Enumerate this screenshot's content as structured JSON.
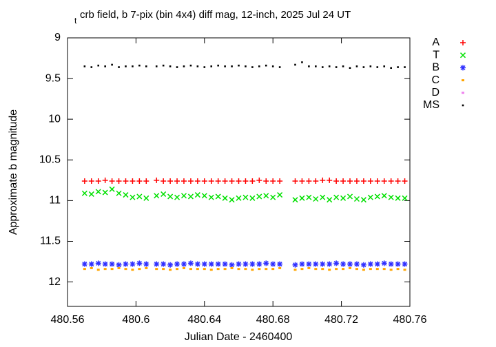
{
  "chart_data": {
    "type": "scatter",
    "title_subscript": "t",
    "title": "crb field, b 7-pix (bin 4x4) diff mag, 12-inch, 2025 Jul 24 UT",
    "x_label": "Julian Date - 2460400",
    "y_label": "Approximate b magnitude",
    "xlim": [
      480.56,
      480.76
    ],
    "xticks": [
      480.56,
      480.6,
      480.64,
      480.68,
      480.72,
      480.76
    ],
    "ylim": [
      12.3,
      9
    ],
    "yticks": [
      9,
      9.5,
      10,
      10.5,
      11,
      11.5,
      12
    ],
    "legend": "outside-right",
    "x": [
      480.57,
      480.574,
      480.578,
      480.582,
      480.586,
      480.59,
      480.594,
      480.598,
      480.602,
      480.606,
      480.612,
      480.616,
      480.62,
      480.624,
      480.628,
      480.632,
      480.636,
      480.64,
      480.644,
      480.648,
      480.652,
      480.656,
      480.66,
      480.664,
      480.668,
      480.672,
      480.676,
      480.68,
      480.684,
      480.693,
      480.697,
      480.701,
      480.705,
      480.709,
      480.713,
      480.717,
      480.721,
      480.725,
      480.729,
      480.733,
      480.737,
      480.741,
      480.745,
      480.749,
      480.753,
      480.757
    ],
    "series": [
      {
        "name": "A",
        "color": "#ff0000",
        "marker": "plus",
        "values": [
          10.76,
          10.76,
          10.76,
          10.75,
          10.76,
          10.76,
          10.76,
          10.76,
          10.76,
          10.76,
          10.75,
          10.76,
          10.76,
          10.76,
          10.76,
          10.76,
          10.76,
          10.76,
          10.76,
          10.76,
          10.76,
          10.76,
          10.76,
          10.76,
          10.76,
          10.75,
          10.76,
          10.76,
          10.76,
          10.76,
          10.76,
          10.76,
          10.76,
          10.75,
          10.75,
          10.76,
          10.76,
          10.76,
          10.76,
          10.76,
          10.76,
          10.76,
          10.76,
          10.76,
          10.76,
          10.76
        ]
      },
      {
        "name": "T",
        "color": "#00e000",
        "marker": "cross",
        "values": [
          10.91,
          10.92,
          10.89,
          10.9,
          10.86,
          10.91,
          10.93,
          10.96,
          10.95,
          10.97,
          10.94,
          10.92,
          10.95,
          10.96,
          10.94,
          10.95,
          10.93,
          10.94,
          10.96,
          10.95,
          10.97,
          10.99,
          10.97,
          10.96,
          10.97,
          10.95,
          10.94,
          10.96,
          10.93,
          10.99,
          10.97,
          10.96,
          10.98,
          10.96,
          10.99,
          10.96,
          10.97,
          10.95,
          10.98,
          10.99,
          10.96,
          10.95,
          10.94,
          10.96,
          10.97,
          10.97
        ]
      },
      {
        "name": "B",
        "color": "#3030ff",
        "marker": "star",
        "values": [
          11.78,
          11.78,
          11.77,
          11.78,
          11.78,
          11.79,
          11.78,
          11.78,
          11.77,
          11.78,
          11.78,
          11.78,
          11.79,
          11.78,
          11.78,
          11.77,
          11.78,
          11.78,
          11.78,
          11.78,
          11.78,
          11.79,
          11.78,
          11.78,
          11.78,
          11.78,
          11.77,
          11.78,
          11.78,
          11.79,
          11.78,
          11.78,
          11.78,
          11.78,
          11.78,
          11.77,
          11.78,
          11.78,
          11.78,
          11.79,
          11.78,
          11.78,
          11.77,
          11.78,
          11.78,
          11.78
        ]
      },
      {
        "name": "C",
        "color": "#ffa500",
        "marker": "square",
        "values": [
          11.84,
          11.83,
          11.85,
          11.84,
          11.84,
          11.83,
          11.84,
          11.85,
          11.84,
          11.83,
          11.84,
          11.84,
          11.85,
          11.84,
          11.83,
          11.84,
          11.84,
          11.84,
          11.85,
          11.84,
          11.84,
          11.83,
          11.84,
          11.84,
          11.85,
          11.84,
          11.84,
          11.84,
          11.83,
          11.85,
          11.84,
          11.83,
          11.84,
          11.84,
          11.85,
          11.84,
          11.84,
          11.83,
          11.84,
          11.85,
          11.84,
          11.84,
          11.84,
          11.85,
          11.84,
          11.85
        ]
      },
      {
        "name": "D",
        "color": "#ee82ee",
        "marker": "square",
        "values": [
          null,
          null,
          null,
          null,
          null,
          null,
          null,
          null,
          null,
          null,
          null,
          null,
          null,
          null,
          null,
          null,
          null,
          null,
          null,
          null,
          null,
          null,
          null,
          null,
          null,
          null,
          null,
          null,
          null,
          null,
          null,
          null,
          null,
          null,
          null,
          null,
          null,
          null,
          null,
          null,
          null,
          null,
          null,
          null,
          null,
          null
        ]
      },
      {
        "name": "MS",
        "color": "#000000",
        "marker": "dot",
        "values": [
          9.35,
          9.36,
          9.34,
          9.35,
          9.33,
          9.36,
          9.35,
          9.35,
          9.34,
          9.35,
          9.35,
          9.34,
          9.35,
          9.36,
          9.35,
          9.34,
          9.35,
          9.36,
          9.35,
          9.34,
          9.35,
          9.35,
          9.34,
          9.35,
          9.36,
          9.35,
          9.34,
          9.35,
          9.36,
          9.33,
          9.3,
          9.35,
          9.35,
          9.36,
          9.35,
          9.36,
          9.35,
          9.37,
          9.35,
          9.36,
          9.35,
          9.36,
          9.35,
          9.37,
          9.36,
          9.36
        ]
      }
    ]
  }
}
